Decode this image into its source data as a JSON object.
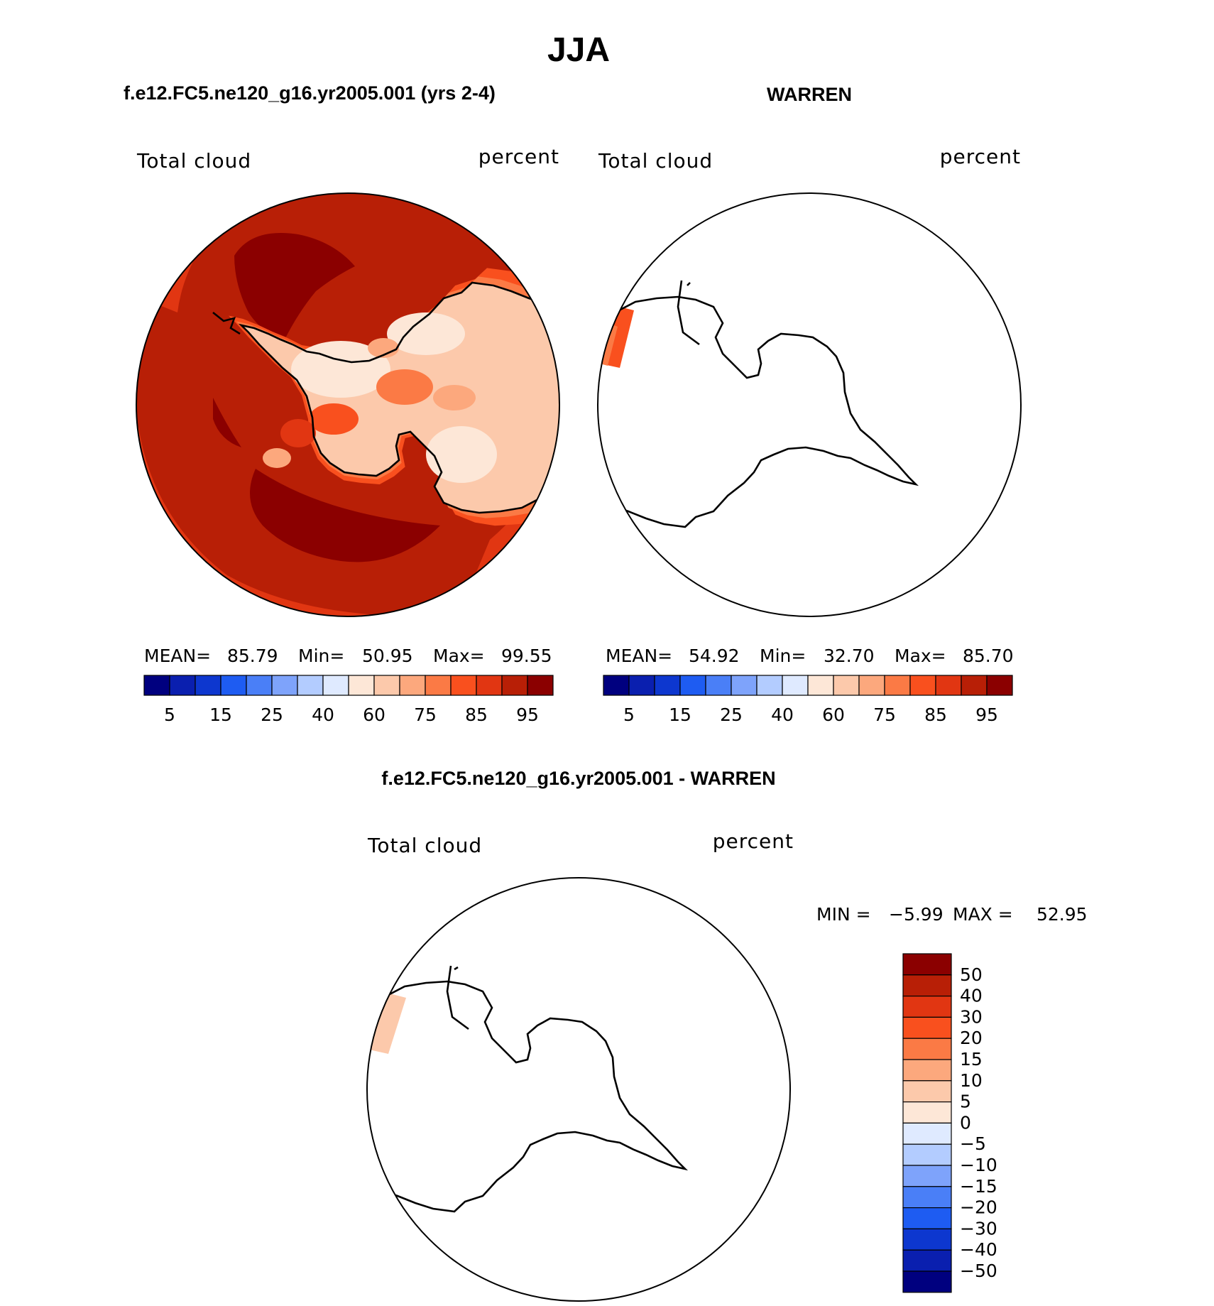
{
  "figure": {
    "season": "JJA",
    "land_outline": "antarctica-coastline"
  },
  "panel_model": {
    "title": "f.e12.FC5.ne120_g16.yr2005.001 (yrs 2-4)",
    "variable": "Total cloud",
    "units": "percent",
    "stats": {
      "mean_label": "MEAN=",
      "mean": "85.79",
      "min_label": "Min=",
      "min": "50.95",
      "max_label": "Max=",
      "max": "99.55"
    }
  },
  "panel_obs": {
    "title": "WARREN",
    "variable": "Total cloud",
    "units": "percent",
    "stats": {
      "mean_label": "MEAN=",
      "mean": "54.92",
      "min_label": "Min=",
      "min": "32.70",
      "max_label": "Max=",
      "max": "85.70"
    }
  },
  "panel_diff": {
    "title": "f.e12.FC5.ne120_g16.yr2005.001 - WARREN",
    "variable": "Total cloud",
    "units": "percent",
    "stats": {
      "min_label": "MIN =",
      "min": "−5.99",
      "max_label": "MAX =",
      "max": "52.95"
    }
  },
  "colorbar_top": {
    "colors": [
      "#00007f",
      "#0a1faf",
      "#0d37cf",
      "#1e5cf2",
      "#4a7ff7",
      "#7ea3fb",
      "#b3ccff",
      "#dfeaff",
      "#fde7d7",
      "#fcc9ab",
      "#fca87d",
      "#fb7a45",
      "#f9501e",
      "#e13612",
      "#b81f06",
      "#8b0000"
    ],
    "tick_labels": [
      "5",
      "15",
      "25",
      "40",
      "60",
      "75",
      "85",
      "95"
    ]
  },
  "colorbar_diff": {
    "colors_top_to_bottom": [
      "#8b0000",
      "#b81f06",
      "#e13612",
      "#f9501e",
      "#fb7a45",
      "#fca87d",
      "#fcc9ab",
      "#fde7d7",
      "#dfeaff",
      "#b3ccff",
      "#7ea3fb",
      "#4a7ff7",
      "#1e5cf2",
      "#0d37cf",
      "#0a1faf",
      "#00007f"
    ],
    "tick_labels": [
      "50",
      "40",
      "30",
      "20",
      "15",
      "10",
      "5",
      "0",
      "−5",
      "−10",
      "−15",
      "−20",
      "−30",
      "−40",
      "−50"
    ]
  },
  "chart_data": [
    {
      "type": "heatmap",
      "title": "f.e12.FC5.ne120_g16.yr2005.001 (yrs 2-4)",
      "projection": "south-polar-stereographic",
      "levels": [
        5,
        10,
        15,
        20,
        25,
        30,
        40,
        50,
        60,
        70,
        75,
        80,
        85,
        90,
        95
      ],
      "mean": 85.79,
      "min": 50.95,
      "max": 99.55,
      "pattern": "high cloud cover (85-99%) over the Southern Ocean, lower (50-80%) over the Antarctic interior"
    },
    {
      "type": "heatmap",
      "title": "WARREN",
      "projection": "south-polar-stereographic",
      "levels": [
        5,
        10,
        15,
        20,
        25,
        30,
        40,
        50,
        60,
        70,
        75,
        80,
        85,
        90,
        95
      ],
      "mean": 54.92,
      "min": 32.7,
      "max": 85.7,
      "pattern": "data only in a small strip near the western edge of the disc (70-90%)"
    },
    {
      "type": "heatmap",
      "title": "f.e12.FC5.ne120_g16.yr2005.001 - WARREN",
      "projection": "south-polar-stereographic",
      "levels": [
        -50,
        -40,
        -30,
        -20,
        -15,
        -10,
        -5,
        0,
        5,
        10,
        15,
        20,
        30,
        40,
        50
      ],
      "min": -5.99,
      "max": 52.95,
      "pattern": "small positive (5-10) strip near the western edge of the disc"
    }
  ]
}
